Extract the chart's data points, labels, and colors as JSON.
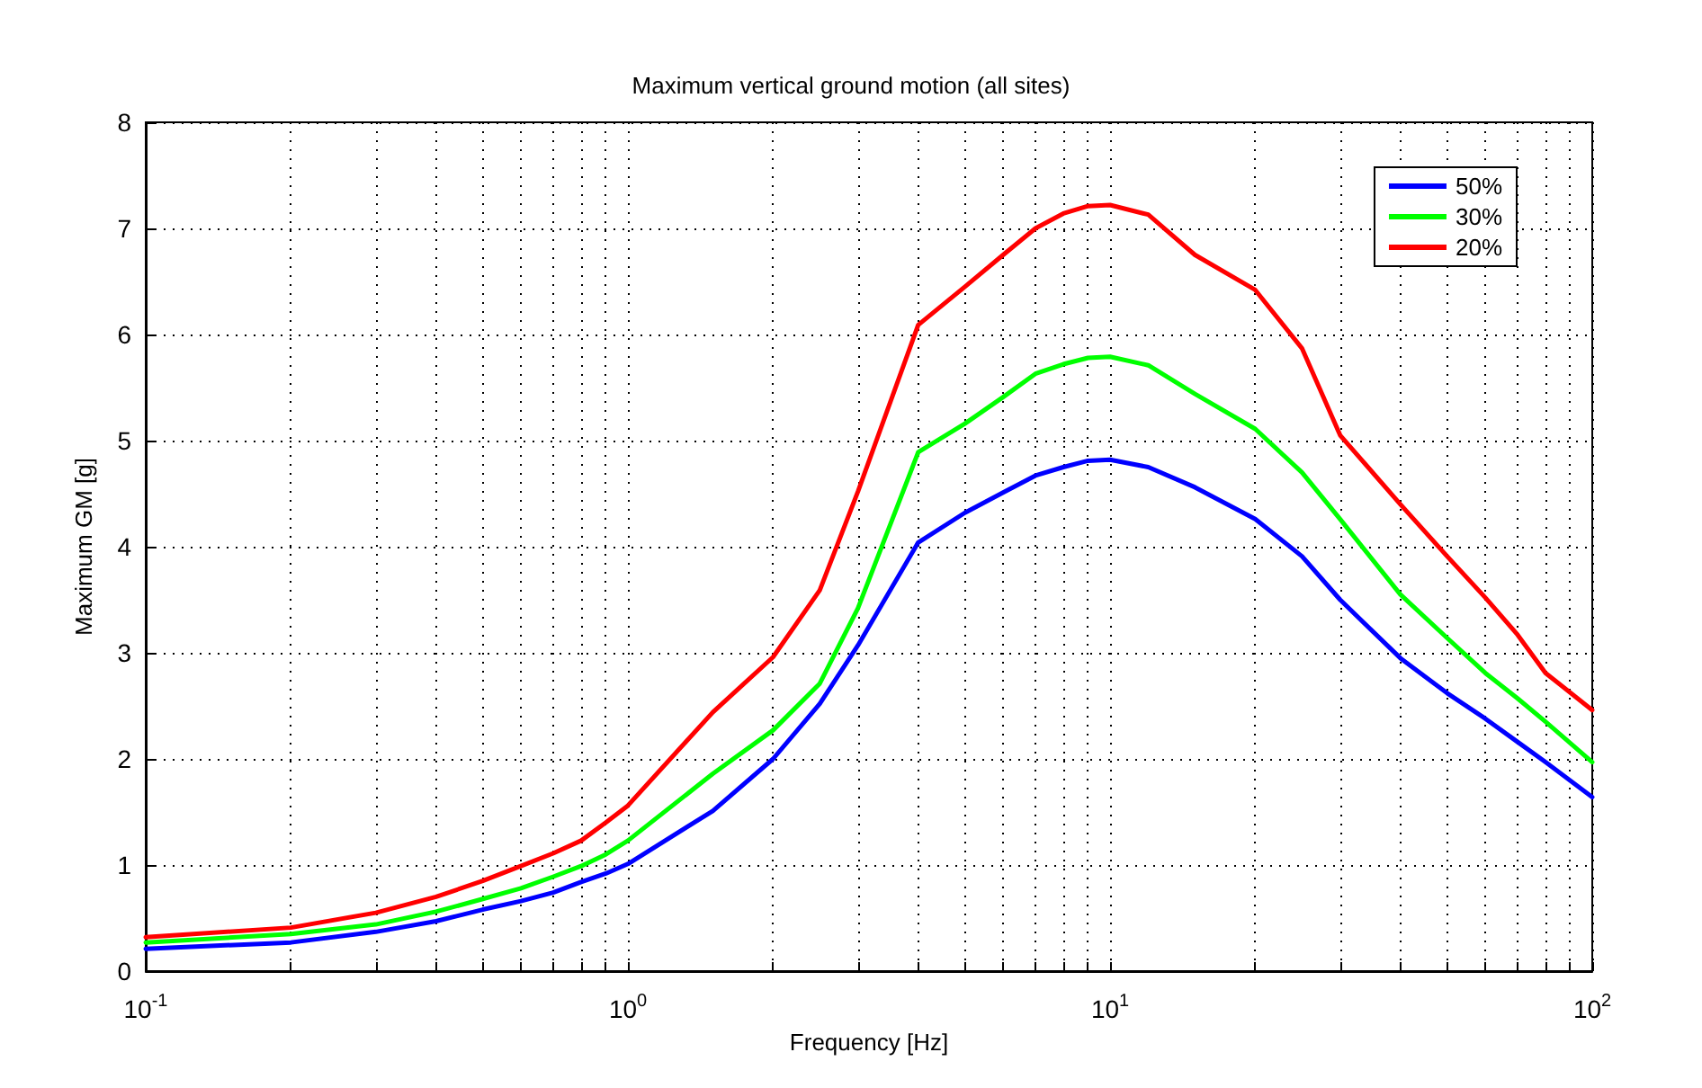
{
  "chart_data": {
    "type": "line",
    "title": "Maximum vertical ground motion (all sites)",
    "xlabel": "Frequency [Hz]",
    "ylabel": "Maximum GM [g]",
    "x": [
      0.1,
      0.2,
      0.3,
      0.4,
      0.5,
      0.6,
      0.7,
      0.8,
      0.9,
      1,
      1.5,
      2,
      2.5,
      3,
      4,
      5,
      6,
      7,
      8,
      9,
      10,
      12,
      15,
      20,
      25,
      30,
      40,
      50,
      60,
      70,
      80,
      100
    ],
    "series": [
      {
        "name": "50%",
        "color": "#0000ff",
        "values": [
          0.21,
          0.27,
          0.37,
          0.47,
          0.58,
          0.66,
          0.74,
          0.84,
          0.92,
          1.01,
          1.51,
          2.0,
          2.52,
          3.07,
          4.04,
          4.32,
          4.51,
          4.67,
          4.75,
          4.81,
          4.82,
          4.75,
          4.56,
          4.26,
          3.91,
          3.5,
          2.95,
          2.62,
          2.38,
          2.16,
          1.97,
          1.64
        ]
      },
      {
        "name": "30%",
        "color": "#00ff00",
        "values": [
          0.27,
          0.35,
          0.44,
          0.56,
          0.68,
          0.78,
          0.89,
          0.99,
          1.1,
          1.23,
          1.86,
          2.27,
          2.71,
          3.42,
          4.89,
          5.16,
          5.41,
          5.63,
          5.72,
          5.78,
          5.79,
          5.71,
          5.44,
          5.11,
          4.7,
          4.26,
          3.55,
          3.14,
          2.81,
          2.57,
          2.35,
          1.97
        ]
      },
      {
        "name": "20%",
        "color": "#ff0000",
        "values": [
          0.32,
          0.41,
          0.55,
          0.7,
          0.85,
          0.99,
          1.11,
          1.23,
          1.4,
          1.56,
          2.44,
          2.96,
          3.59,
          4.52,
          6.09,
          6.45,
          6.75,
          7.0,
          7.14,
          7.21,
          7.22,
          7.13,
          6.75,
          6.42,
          5.87,
          5.05,
          4.4,
          3.91,
          3.52,
          3.17,
          2.81,
          2.46
        ]
      }
    ],
    "log": "x",
    "xlim": [
      0.1,
      100
    ],
    "xticks": [
      {
        "value": 0.1,
        "label": "10$^{-1}$"
      },
      {
        "value": 0.2,
        "label": null
      },
      {
        "value": 0.3,
        "label": null
      },
      {
        "value": 0.4,
        "label": null
      },
      {
        "value": 0.5,
        "label": null
      },
      {
        "value": 0.6,
        "label": null
      },
      {
        "value": 0.7,
        "label": null
      },
      {
        "value": 0.8,
        "label": null
      },
      {
        "value": 0.9,
        "label": null
      },
      {
        "value": 1,
        "label": "10$^{0}$"
      },
      {
        "value": 2,
        "label": null
      },
      {
        "value": 3,
        "label": null
      },
      {
        "value": 4,
        "label": null
      },
      {
        "value": 5,
        "label": null
      },
      {
        "value": 6,
        "label": null
      },
      {
        "value": 7,
        "label": null
      },
      {
        "value": 8,
        "label": null
      },
      {
        "value": 9,
        "label": null
      },
      {
        "value": 10,
        "label": "10$^{1}$"
      },
      {
        "value": 20,
        "label": null
      },
      {
        "value": 30,
        "label": null
      },
      {
        "value": 40,
        "label": null
      },
      {
        "value": 50,
        "label": null
      },
      {
        "value": 60,
        "label": null
      },
      {
        "value": 70,
        "label": null
      },
      {
        "value": 80,
        "label": null
      },
      {
        "value": 90,
        "label": null
      },
      {
        "value": 100,
        "label": "10$^{2}$"
      }
    ],
    "ylim": [
      0,
      8
    ],
    "yticks": [
      0,
      1,
      2,
      3,
      4,
      5,
      6,
      7,
      8
    ],
    "grid": true,
    "legend": "top right",
    "marker": "none",
    "line_style": "solid"
  }
}
